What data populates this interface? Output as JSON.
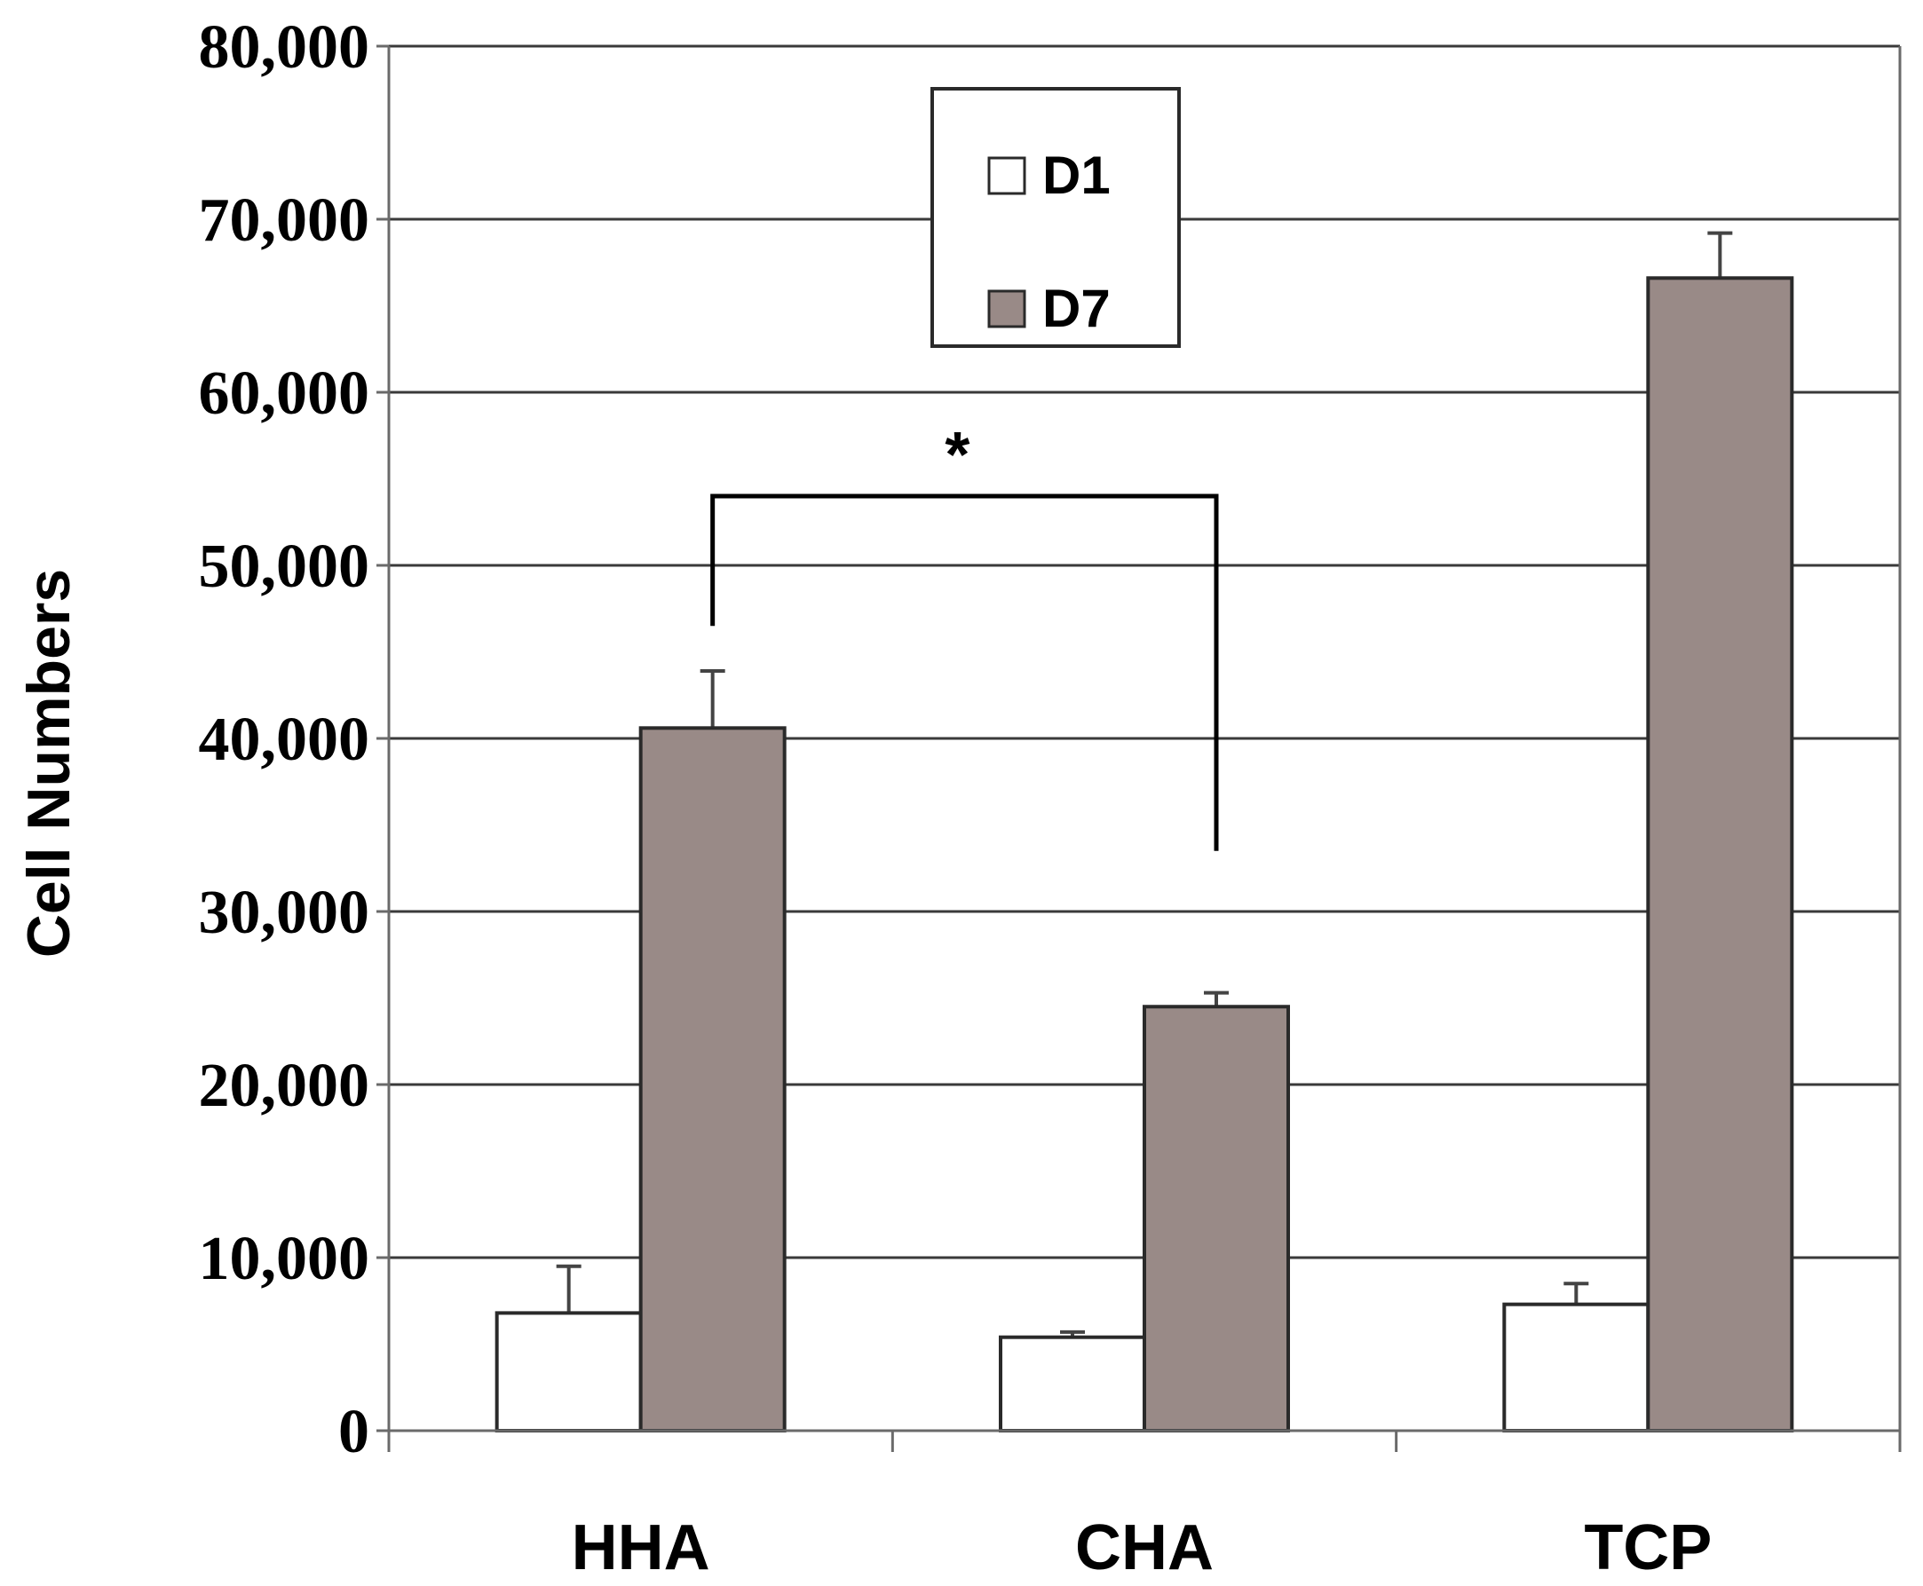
{
  "chart_data": {
    "type": "bar",
    "title": "",
    "xlabel": "",
    "ylabel": "Cell Numbers",
    "ylim": [
      0,
      80000
    ],
    "yticks": [
      0,
      10000,
      20000,
      30000,
      40000,
      50000,
      60000,
      70000,
      80000
    ],
    "ytick_labels": [
      "0",
      "10,000",
      "20,000",
      "30,000",
      "40,000",
      "50,000",
      "60,000",
      "70,000",
      "80,000"
    ],
    "grid": true,
    "categories": [
      "HHA",
      "CHA",
      "TCP"
    ],
    "series": [
      {
        "name": "D1",
        "color": "#ffffff",
        "values": [
          6800,
          5400,
          7300
        ],
        "errors": [
          2700,
          300,
          1200
        ]
      },
      {
        "name": "D7",
        "color": "#998a87",
        "values": [
          40600,
          24500,
          66600
        ],
        "errors": [
          3300,
          800,
          2600
        ]
      }
    ],
    "legend": {
      "position": "top-center",
      "entries": [
        "D1",
        "D7"
      ]
    },
    "annotations": [
      {
        "type": "significance-bracket",
        "text": "*",
        "from": "HHA D7",
        "to": "CHA D7",
        "level": 54000,
        "left_end": 46500,
        "right_end": 33500
      }
    ]
  }
}
